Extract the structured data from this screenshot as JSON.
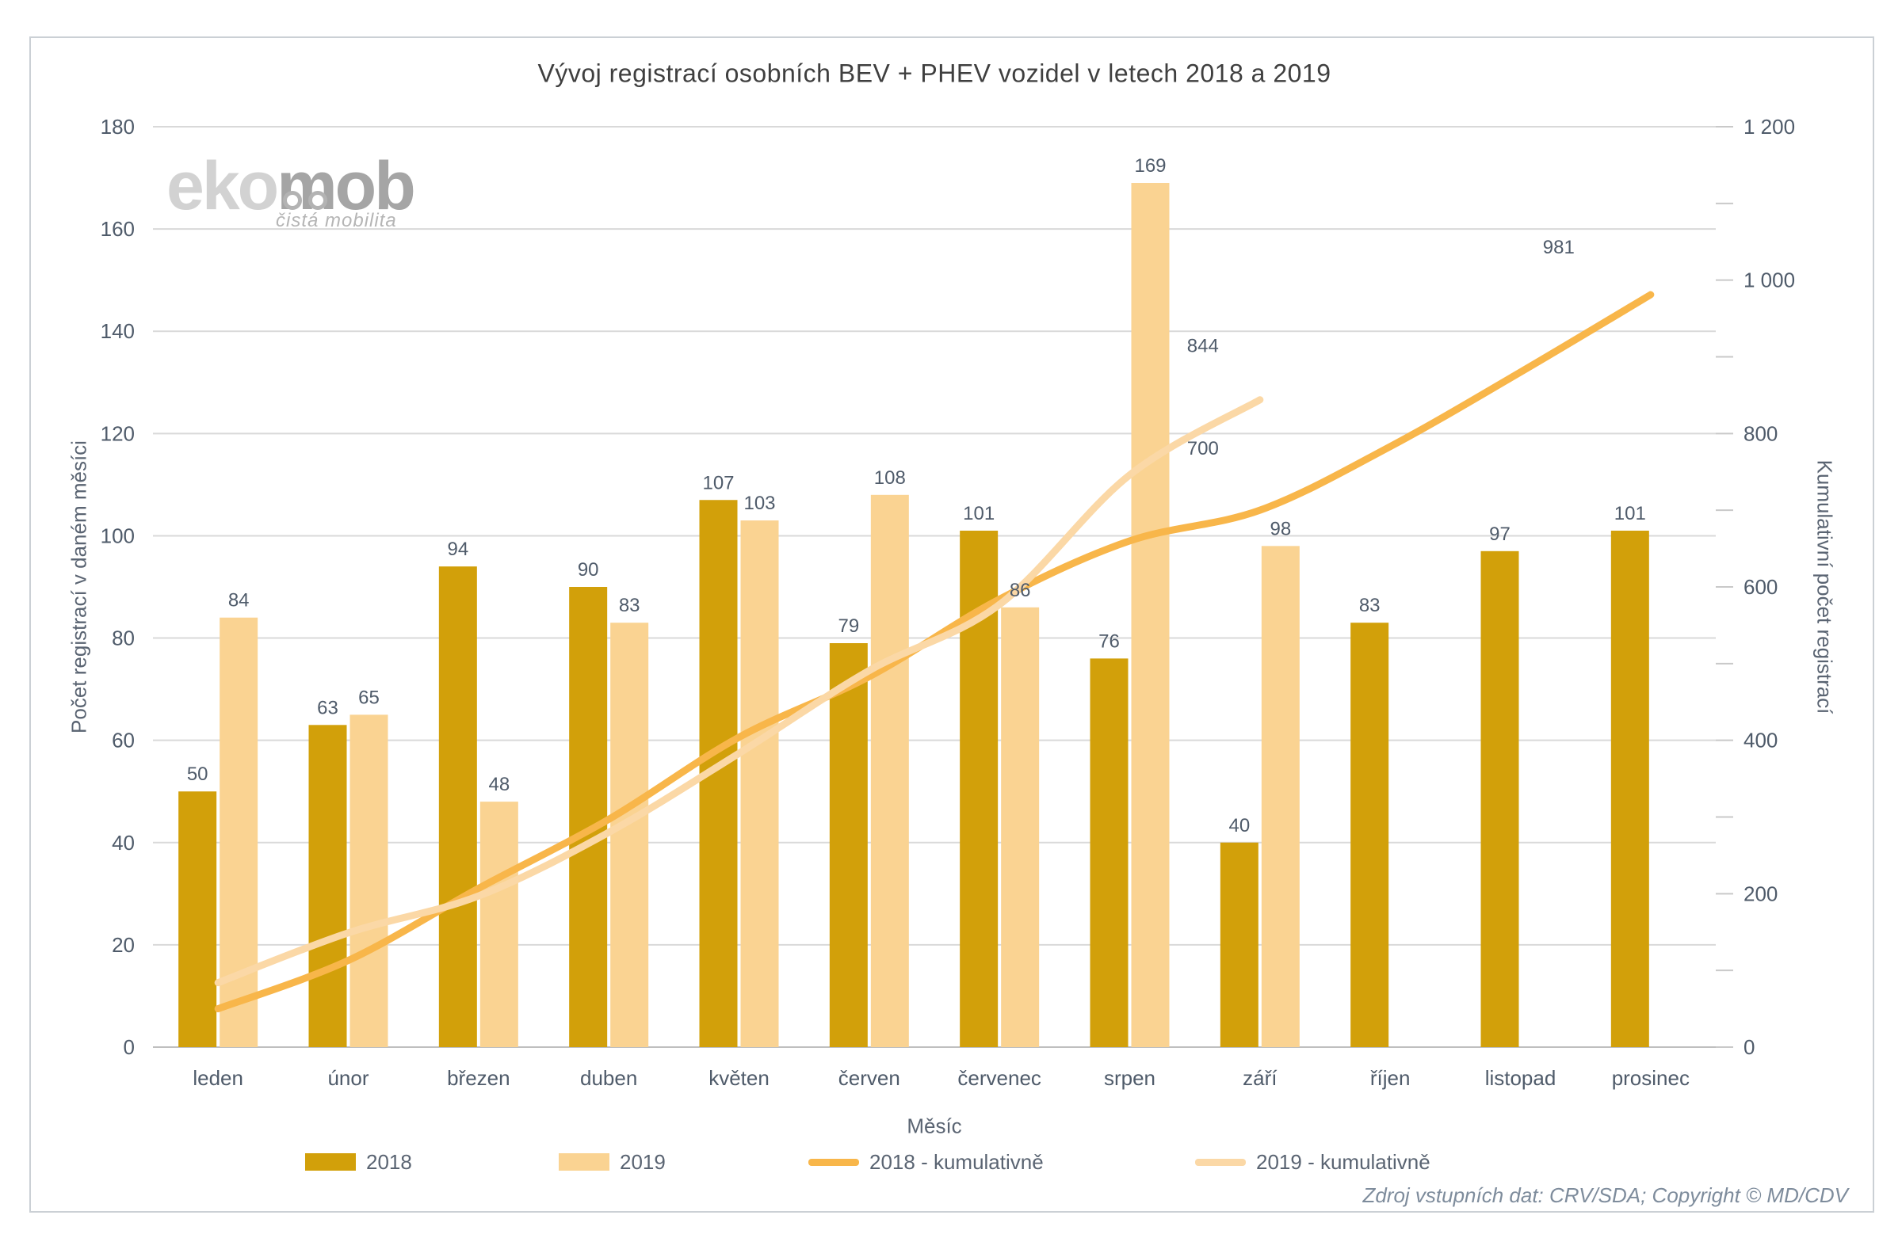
{
  "title": "Vývoj registrací osobních BEV + PHEV vozidel v letech 2018 a 2019",
  "logo": {
    "part1": "eko",
    "part2": "mob",
    "tagline": "čistá mobilita"
  },
  "axis_titles": {
    "left": "Počet registrací v daném měsíci",
    "right": "Kumulativní počet registrací",
    "x": "Měsíc"
  },
  "footer": "Zdroj vstupních dat: CRV/SDA; Copyright © MD/CDV",
  "colors": {
    "bar_2018": "#d2a00a",
    "bar_2019": "#fad392",
    "line_2018": "#f8b64a",
    "line_2019": "#fbd8a6",
    "gridline": "#d9d9d9",
    "baseline": "#bfbfbf",
    "tick": "#c9c9c9",
    "label_text": "#4f5b6a",
    "title_text": "#3f3f3f"
  },
  "legend": [
    {
      "label": "2018",
      "swatch": "bar",
      "color": "#d2a00a",
      "x": 385
    },
    {
      "label": "2019",
      "swatch": "bar",
      "color": "#fad392",
      "x": 705
    },
    {
      "label": "2018 - kumulativně",
      "swatch": "line",
      "color": "#f8b64a",
      "x": 1020
    },
    {
      "label": "2019 - kumulativně",
      "swatch": "line",
      "color": "#fbd8a6",
      "x": 1508
    }
  ],
  "chart_data": {
    "type": "bar",
    "subtype": "combo-bar-line-dual-axis",
    "title": "Vývoj registrací osobních BEV + PHEV vozidel v letech 2018 a 2019",
    "xlabel": "Měsíc",
    "ylabel_left": "Počet registrací v daném měsíci",
    "ylabel_right": "Kumulativní počet registrací",
    "grid": "horizontal-major",
    "legend_position": "bottom",
    "categories": [
      "leden",
      "únor",
      "březen",
      "duben",
      "květen",
      "červen",
      "červenec",
      "srpen",
      "září",
      "říjen",
      "listopad",
      "prosinec"
    ],
    "left_axis": {
      "min": 0,
      "max": 180,
      "step": 20,
      "tick_labels": [
        "0",
        "20",
        "40",
        "60",
        "80",
        "100",
        "120",
        "140",
        "160",
        "180"
      ]
    },
    "right_axis": {
      "min": 0,
      "max": 1200,
      "label_step": 200,
      "minor_tick_step": 100,
      "tick_labels": [
        "0",
        "200",
        "400",
        "600",
        "800",
        "1 000",
        "1 200"
      ]
    },
    "series": [
      {
        "name": "2018",
        "type": "bar",
        "axis": "left",
        "color": "#d2a00a",
        "values": [
          50,
          63,
          94,
          90,
          107,
          79,
          101,
          76,
          40,
          83,
          97,
          101
        ]
      },
      {
        "name": "2019",
        "type": "bar",
        "axis": "left",
        "color": "#fad392",
        "values": [
          84,
          65,
          48,
          83,
          103,
          108,
          86,
          169,
          98,
          null,
          null,
          null
        ]
      },
      {
        "name": "2018 - kumulativně",
        "type": "line",
        "axis": "right",
        "color": "#f8b64a",
        "values": [
          50,
          113,
          207,
          297,
          404,
          483,
          584,
          660,
          700,
          783,
          880,
          981
        ]
      },
      {
        "name": "2019 - kumulativně",
        "type": "line",
        "axis": "right",
        "color": "#fbd8a6",
        "values": [
          84,
          149,
          197,
          280,
          383,
          491,
          577,
          746,
          844,
          null,
          null,
          null
        ]
      }
    ],
    "line_labels": [
      {
        "series": 2,
        "index": 8,
        "text": "700"
      },
      {
        "series": 2,
        "index": 11,
        "text": "981"
      },
      {
        "series": 3,
        "index": 8,
        "text": "844"
      }
    ]
  }
}
